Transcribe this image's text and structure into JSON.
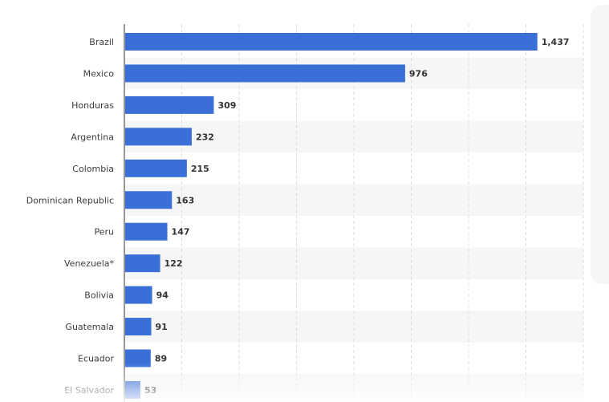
{
  "chart_data": {
    "type": "bar",
    "orientation": "horizontal",
    "categories": [
      "Brazil",
      "Mexico",
      "Honduras",
      "Argentina",
      "Colombia",
      "Dominican Republic",
      "Peru",
      "Venezuela*",
      "Bolivia",
      "Guatemala",
      "Ecuador",
      "El Salvador"
    ],
    "values": [
      1437,
      976,
      309,
      232,
      215,
      163,
      147,
      122,
      94,
      91,
      89,
      53
    ],
    "value_labels": [
      "1,437",
      "976",
      "309",
      "232",
      "215",
      "163",
      "147",
      "122",
      "94",
      "91",
      "89",
      "53"
    ],
    "title": "",
    "xlabel": "",
    "ylabel": "",
    "xlim": [
      0,
      1600
    ],
    "grid": true,
    "bar_color": "#3a6fd8",
    "gridline_color": "#dddddd",
    "stripe_color": "#f5f6f8"
  }
}
